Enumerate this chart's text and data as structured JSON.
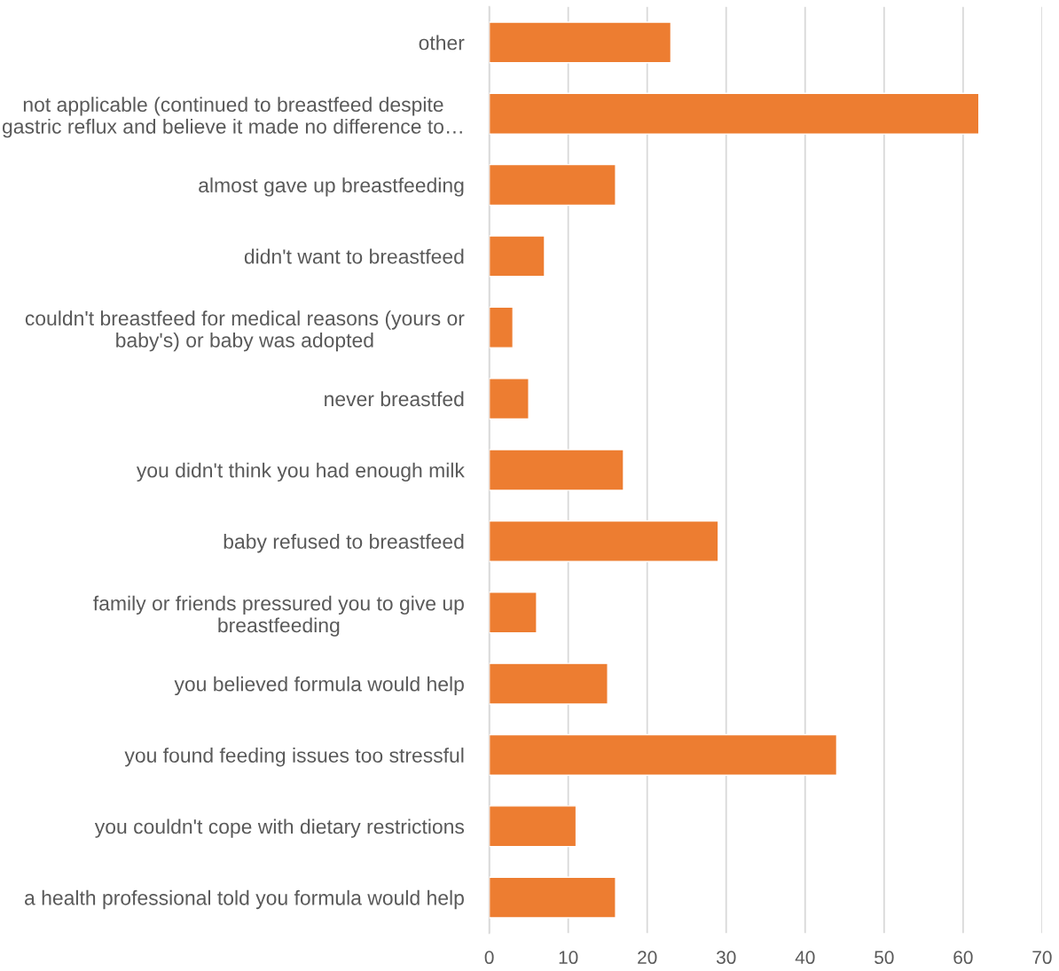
{
  "chart_data": {
    "type": "bar",
    "orientation": "horizontal",
    "categories": [
      "other",
      "not applicable (continued to breastfeed despite\ngastric reflux and believe it made no difference to…",
      "almost gave up breastfeeding",
      "didn't want to breastfeed",
      "couldn't breastfeed for medical reasons (yours or\nbaby's) or baby was adopted",
      "never breastfed",
      "you didn't think you had enough milk",
      "baby refused to breastfeed",
      "family or friends pressured you to give up\nbreastfeeding",
      "you believed formula would help",
      "you found feeding issues too stressful",
      "you couldn't cope with dietary restrictions",
      "a health professional told you formula would help"
    ],
    "values": [
      23,
      62,
      16,
      7,
      3,
      5,
      17,
      29,
      6,
      15,
      44,
      11,
      16
    ],
    "color": "#ed7d31",
    "xlim": [
      0,
      70
    ],
    "xticks": [
      0,
      10,
      20,
      30,
      40,
      50,
      60,
      70
    ],
    "grid": "x",
    "legend": false
  }
}
